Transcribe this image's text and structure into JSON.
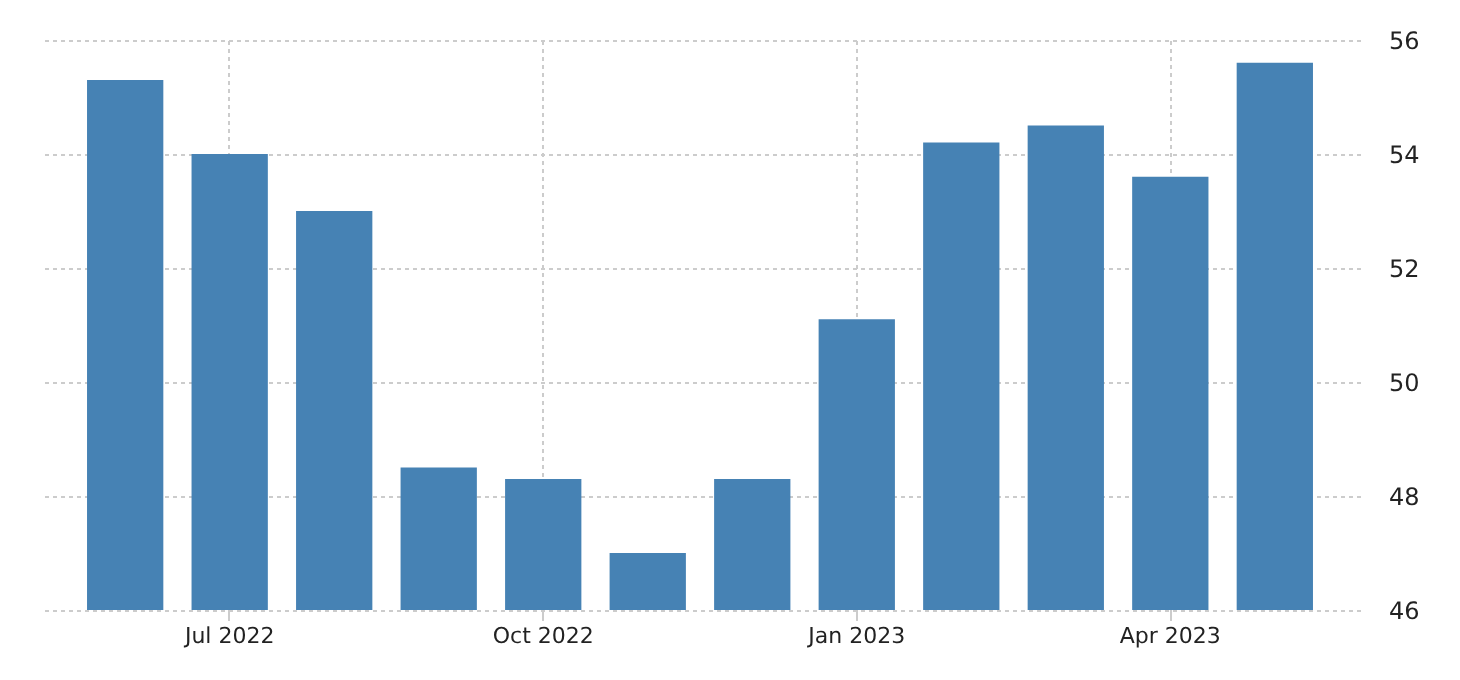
{
  "chart_data": {
    "type": "bar",
    "categories": [
      null,
      "Jul 2022",
      null,
      null,
      "Oct 2022",
      null,
      null,
      "Jan 2023",
      null,
      null,
      "Apr 2023",
      null
    ],
    "values": [
      55.3,
      54.0,
      53.0,
      48.5,
      48.3,
      47.0,
      48.3,
      51.1,
      54.2,
      54.5,
      53.6,
      55.6
    ],
    "color": "#4682b4",
    "ylim": [
      46,
      56
    ],
    "yticks": [
      46,
      48,
      50,
      52,
      54,
      56
    ],
    "grid": true
  }
}
